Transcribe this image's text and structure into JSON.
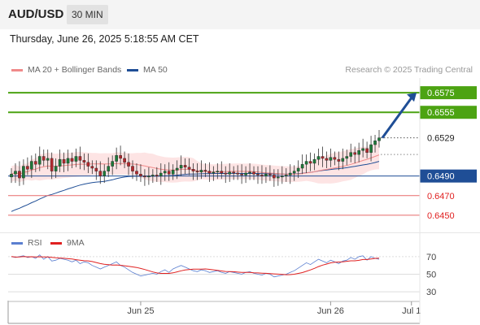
{
  "header": {
    "pair": "AUD/USD",
    "timeframe": "30 MIN"
  },
  "datetime": "Thursday, June 26, 2025 5:18:55 AM CET",
  "legend": {
    "ma20": "MA 20 + Bollinger Bands",
    "ma50": "MA 50",
    "ma20_color": "#f08a8a",
    "ma50_color": "#1f4e96"
  },
  "credit": "Research © 2025 Trading Central",
  "rsi_legend": {
    "rsi": "RSI",
    "ma9": "9MA",
    "rsi_color": "#5b7fd0",
    "ma9_color": "#e02020"
  },
  "chart_data": {
    "type": "line",
    "price": {
      "y_range": [
        0.6435,
        0.659
      ],
      "closes": [
        0.6492,
        0.6495,
        0.6488,
        0.65,
        0.6497,
        0.6505,
        0.6502,
        0.651,
        0.6506,
        0.6508,
        0.6495,
        0.65,
        0.6507,
        0.6503,
        0.6508,
        0.6505,
        0.651,
        0.6506,
        0.6504,
        0.65,
        0.6498,
        0.6495,
        0.649,
        0.6495,
        0.65,
        0.6505,
        0.6511,
        0.6508,
        0.6504,
        0.65,
        0.6495,
        0.6492,
        0.649,
        0.6489,
        0.649,
        0.6491,
        0.649,
        0.6493,
        0.6495,
        0.6492,
        0.6496,
        0.6498,
        0.6501,
        0.6499,
        0.6497,
        0.6495,
        0.6494,
        0.6496,
        0.6495,
        0.6493,
        0.6494,
        0.6495,
        0.6493,
        0.6492,
        0.6494,
        0.6493,
        0.6492,
        0.6491,
        0.6493,
        0.6494,
        0.6492,
        0.6491,
        0.649,
        0.6492,
        0.6491,
        0.6488,
        0.6489,
        0.649,
        0.6491,
        0.6493,
        0.6495,
        0.6498,
        0.6502,
        0.6505,
        0.6503,
        0.6507,
        0.651,
        0.6508,
        0.6506,
        0.6509,
        0.6507,
        0.6505,
        0.6508,
        0.651,
        0.6514,
        0.6512,
        0.6516,
        0.6518,
        0.6514,
        0.6522,
        0.6526,
        0.6529
      ],
      "x_labels": [
        {
          "label": "Jun 25",
          "index": 32
        },
        {
          "label": "Jun 26",
          "index": 79
        },
        {
          "label": "Jul 1",
          "index": 99
        }
      ],
      "levels": [
        {
          "value": "0.6575",
          "color": "#4ca312",
          "label_bg": "#4ca312",
          "label_color": "#ffffff",
          "style": "solid"
        },
        {
          "value": "0.6555",
          "color": "#4ca312",
          "label_bg": "#4ca312",
          "label_color": "#ffffff",
          "style": "solid"
        },
        {
          "value": "0.6529",
          "color": "#555555",
          "label_bg": "#ffffff",
          "label_color": "#222222",
          "style": "dotted"
        },
        {
          "value": "0.6490",
          "color": "#1f4e96",
          "label_bg": "#1f4e96",
          "label_color": "#ffffff",
          "style": "solid"
        },
        {
          "value": "0.6470",
          "color": "#e86a6a",
          "label_bg": "#ffffff",
          "label_color": "#e02020",
          "style": "solid"
        },
        {
          "value": "0.6450",
          "color": "#e86a6a",
          "label_bg": "#ffffff",
          "label_color": "#e02020",
          "style": "solid"
        }
      ],
      "forecast_target": 0.6575
    },
    "rsi": {
      "y_range": [
        20,
        80
      ],
      "ticks": [
        "70",
        "50",
        "30"
      ],
      "values": [
        70,
        69,
        70,
        71,
        69,
        70,
        68,
        72,
        67,
        70,
        65,
        66,
        68,
        67,
        66,
        64,
        66,
        62,
        64,
        63,
        60,
        58,
        56,
        58,
        60,
        62,
        64,
        60,
        58,
        55,
        52,
        50,
        48,
        49,
        50,
        51,
        50,
        53,
        55,
        52,
        56,
        58,
        60,
        58,
        56,
        54,
        53,
        55,
        54,
        52,
        53,
        54,
        52,
        51,
        53,
        52,
        51,
        50,
        52,
        53,
        51,
        50,
        49,
        51,
        50,
        47,
        48,
        49,
        50,
        52,
        54,
        57,
        60,
        63,
        61,
        64,
        67,
        65,
        63,
        66,
        64,
        62,
        65,
        66,
        69,
        67,
        70,
        71,
        66,
        70,
        68,
        67
      ]
    }
  }
}
